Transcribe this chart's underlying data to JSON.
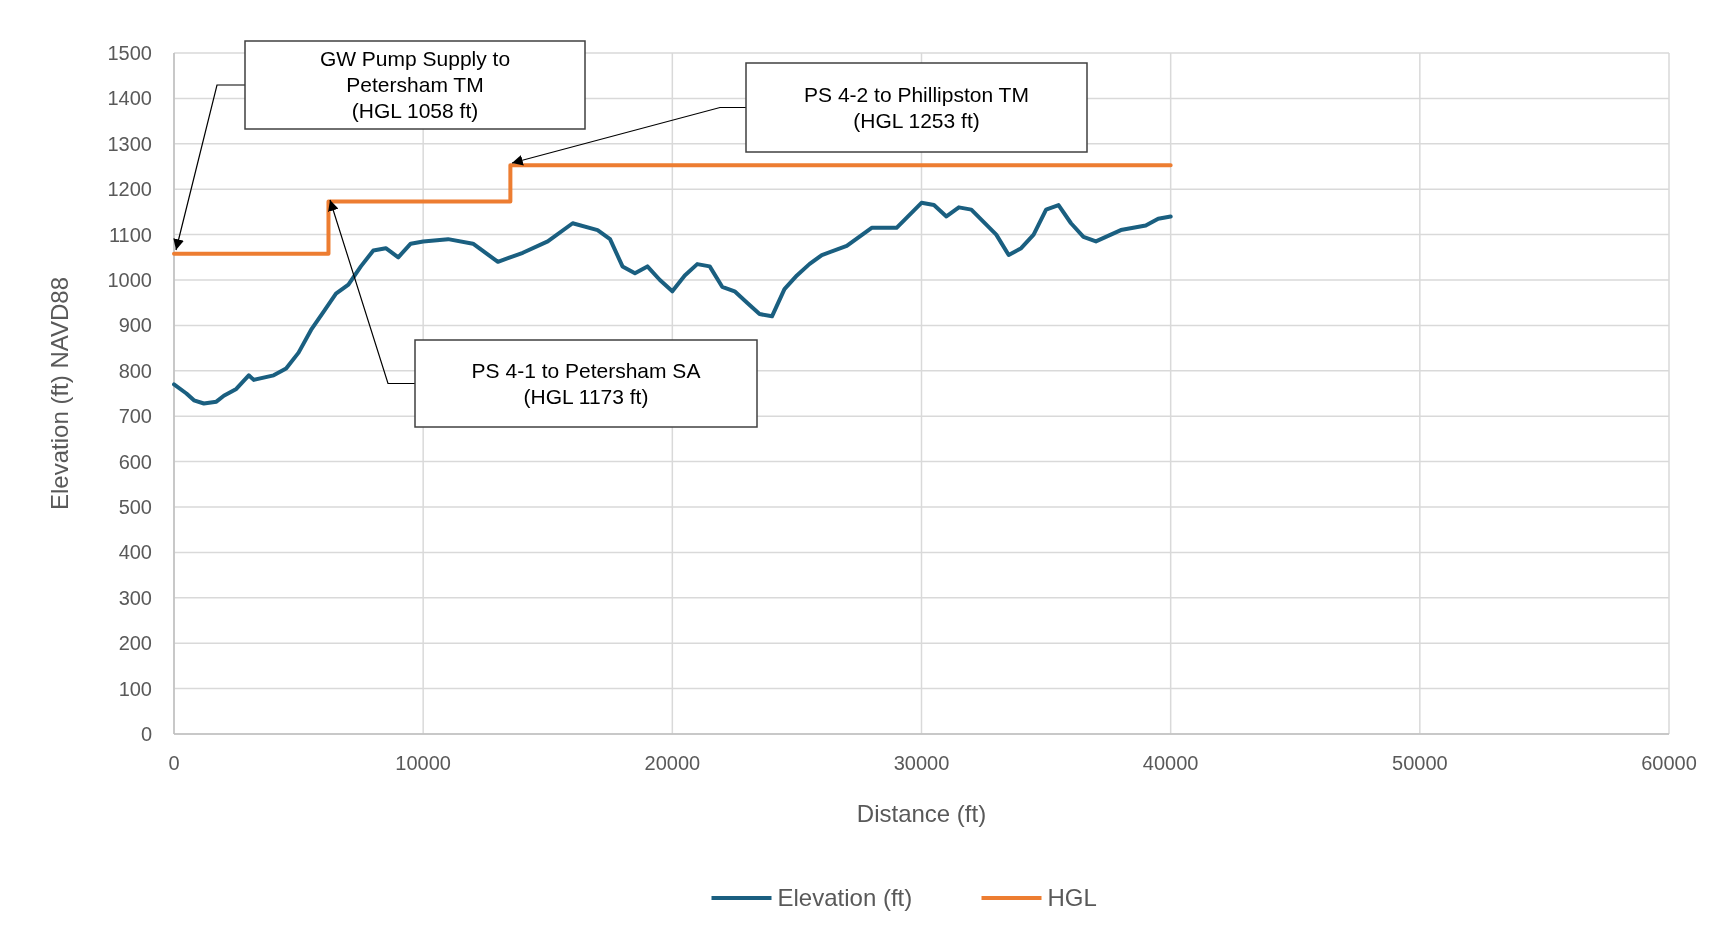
{
  "chart_data": {
    "type": "line",
    "xlabel": "Distance (ft)",
    "ylabel": "Elevation (ft) NAVD88",
    "xlim": [
      0,
      60000
    ],
    "xticks": [
      0,
      10000,
      20000,
      30000,
      40000,
      50000,
      60000
    ],
    "ylim": [
      0,
      1500
    ],
    "yticks": [
      0,
      100,
      200,
      300,
      400,
      500,
      600,
      700,
      800,
      900,
      1000,
      1100,
      1200,
      1300,
      1400,
      1500
    ],
    "grid": true,
    "legend": "bottom",
    "series": [
      {
        "name": "Elevation (ft)",
        "color": "#1a5f80",
        "x": [
          0,
          500,
          800,
          1200,
          1700,
          2000,
          2500,
          3000,
          3200,
          4000,
          4500,
          5000,
          5500,
          6000,
          6500,
          7000,
          7500,
          8000,
          8500,
          9000,
          9500,
          10000,
          11000,
          12000,
          13000,
          14000,
          15000,
          16000,
          17000,
          17500,
          18000,
          18500,
          19000,
          19500,
          20000,
          20500,
          21000,
          21500,
          22000,
          22500,
          23000,
          23500,
          24000,
          24500,
          25000,
          25500,
          26000,
          27000,
          28000,
          29000,
          30000,
          30500,
          31000,
          31500,
          32000,
          33000,
          33500,
          34000,
          34500,
          35000,
          35500,
          36000,
          36500,
          37000,
          38000,
          39000,
          39500,
          40000
        ],
        "values": [
          770,
          750,
          735,
          728,
          732,
          745,
          760,
          790,
          780,
          790,
          805,
          840,
          890,
          930,
          970,
          990,
          1030,
          1065,
          1070,
          1050,
          1080,
          1085,
          1090,
          1080,
          1040,
          1060,
          1085,
          1125,
          1110,
          1090,
          1030,
          1015,
          1030,
          1000,
          975,
          1010,
          1035,
          1030,
          985,
          975,
          950,
          925,
          920,
          980,
          1010,
          1035,
          1055,
          1075,
          1115,
          1115,
          1170,
          1165,
          1140,
          1160,
          1155,
          1100,
          1055,
          1070,
          1100,
          1155,
          1165,
          1125,
          1095,
          1085,
          1110,
          1120,
          1135,
          1140
        ]
      },
      {
        "name": "HGL",
        "type": "step",
        "color": "#ed7d31",
        "x": [
          0,
          6200,
          13500,
          40000
        ],
        "values": [
          1058,
          1173,
          1253,
          1253
        ]
      }
    ],
    "annotations": [
      "GW Pump Supply to\nPetersham TM\n(HGL 1058 ft)",
      "PS 4-2 to Phillipston TM\n(HGL 1253 ft)",
      "PS 4-1 to Petersham SA\n(HGL 1173 ft)"
    ]
  }
}
